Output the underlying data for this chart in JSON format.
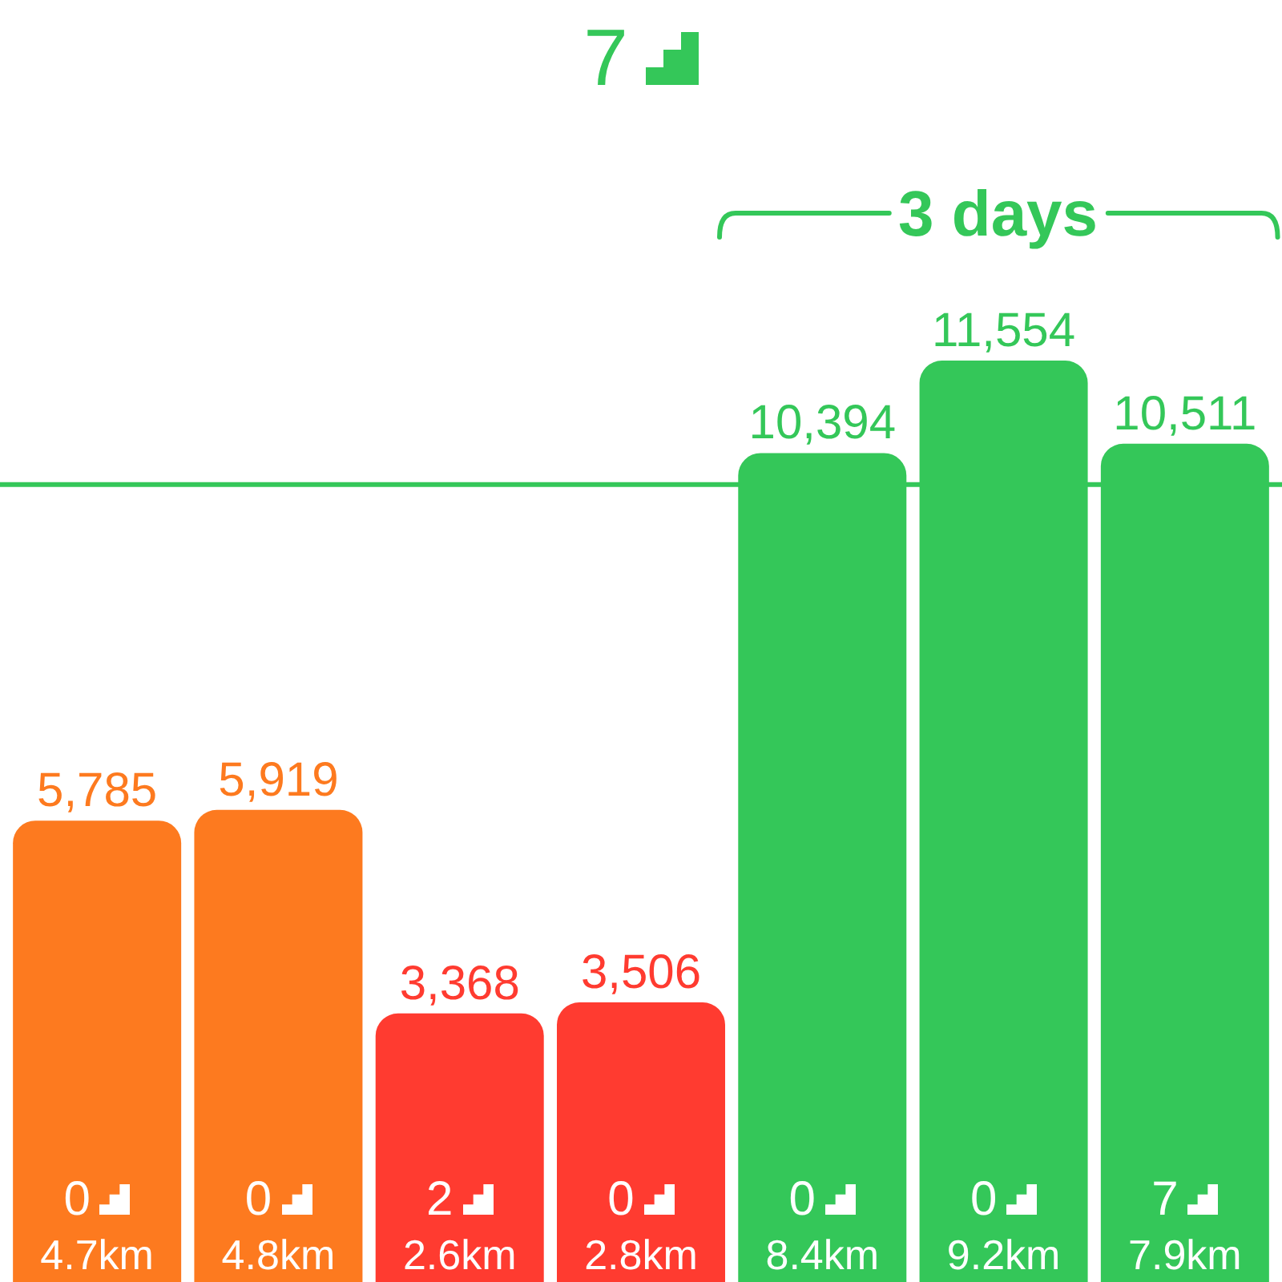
{
  "chart_data": {
    "type": "bar",
    "title": "7",
    "categories": [
      "4.7km",
      "4.8km",
      "2.6km",
      "2.8km",
      "8.4km",
      "9.2km",
      "7.9km"
    ],
    "values": [
      5785,
      5919,
      3368,
      3506,
      10394,
      11554,
      10511
    ],
    "colors": [
      "#fd7a1f",
      "#fd7a1f",
      "#ff3b30",
      "#ff3b30",
      "#34c759",
      "#34c759",
      "#34c759"
    ],
    "value_labels": [
      "5,785",
      "5,919",
      "3,368",
      "3,506",
      "10,394",
      "11,554",
      "10,511"
    ],
    "ref_lines": [
      {
        "axis": "y",
        "value": 10000,
        "color": "#34c759"
      }
    ],
    "annotations": [
      "0",
      "0",
      "2",
      "0",
      "0",
      "0",
      "7",
      "3 days"
    ]
  }
}
